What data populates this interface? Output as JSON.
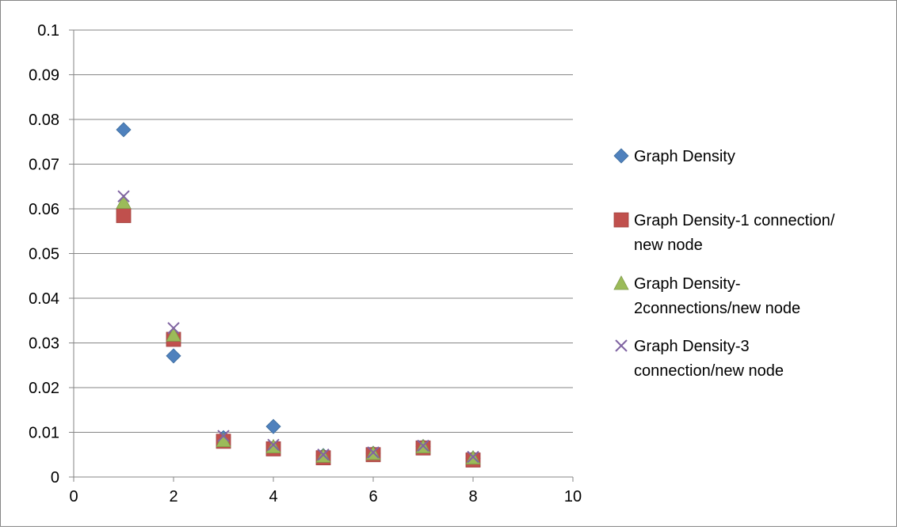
{
  "chart_data": {
    "type": "scatter",
    "xlim": [
      0,
      10
    ],
    "ylim": [
      0,
      0.1
    ],
    "x_ticks": [
      "0",
      "2",
      "4",
      "6",
      "8",
      "10"
    ],
    "y_ticks": [
      "0",
      "0.01",
      "0.02",
      "0.03",
      "0.04",
      "0.05",
      "0.06",
      "0.07",
      "0.08",
      "0.09",
      "0.1"
    ],
    "grid": "horizontal",
    "legend_position": "right",
    "series": [
      {
        "name": "Graph Density",
        "legend_lines": [
          "Graph Density"
        ],
        "marker": "diamond",
        "color": "#4F81BD",
        "points": [
          [
            1,
            0.0777
          ],
          [
            2,
            0.0271
          ],
          [
            3,
            0.0088
          ],
          [
            4,
            0.0113
          ],
          [
            5,
            0.0048
          ],
          [
            6,
            0.0053
          ],
          [
            7,
            0.0068
          ],
          [
            8,
            0.0042
          ]
        ]
      },
      {
        "name": "Graph Density-1 connection/ new node",
        "legend_lines": [
          "Graph Density-1 connection/",
          "new node"
        ],
        "marker": "square",
        "color": "#C0504D",
        "points": [
          [
            1,
            0.0585
          ],
          [
            2,
            0.0308
          ],
          [
            3,
            0.008
          ],
          [
            4,
            0.0063
          ],
          [
            5,
            0.0043
          ],
          [
            6,
            0.005
          ],
          [
            7,
            0.0065
          ],
          [
            8,
            0.0038
          ]
        ]
      },
      {
        "name": "Graph Density- 2connections/new node",
        "legend_lines": [
          "Graph Density-",
          "2connections/new node"
        ],
        "marker": "triangle",
        "color": "#9BBB59",
        "points": [
          [
            1,
            0.0615
          ],
          [
            2,
            0.0318
          ],
          [
            3,
            0.0082
          ],
          [
            4,
            0.0068
          ],
          [
            5,
            0.0047
          ],
          [
            6,
            0.0053
          ],
          [
            7,
            0.0068
          ],
          [
            8,
            0.0043
          ]
        ]
      },
      {
        "name": "Graph Density-3 connection/new node",
        "legend_lines": [
          "Graph Density-3",
          "connection/new node"
        ],
        "marker": "x",
        "color": "#8064A2",
        "points": [
          [
            1,
            0.0628
          ],
          [
            2,
            0.0333
          ],
          [
            3,
            0.0092
          ],
          [
            4,
            0.0072
          ],
          [
            5,
            0.005
          ],
          [
            6,
            0.0055
          ],
          [
            7,
            0.007
          ],
          [
            8,
            0.0045
          ]
        ]
      }
    ]
  }
}
